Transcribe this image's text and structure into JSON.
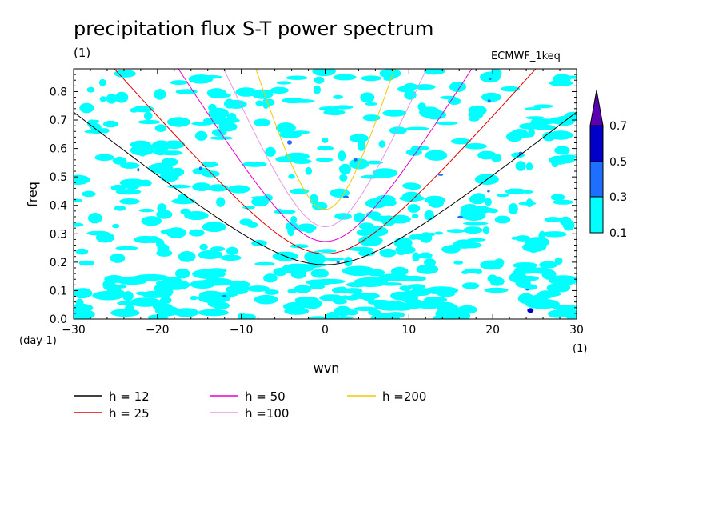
{
  "chart_data": {
    "type": "heatmap",
    "title": "precipitation flux S-T power spectrum",
    "subtitle": "(1)",
    "source_label": "ECMWF_1keq",
    "xlabel": "wvn",
    "ylabel": "freq",
    "x_unit_label": "(1)",
    "y_unit_label": "(day-1)",
    "xlim": [
      -30,
      30
    ],
    "ylim": [
      0,
      0.88
    ],
    "x_ticks": [
      -30,
      -20,
      -10,
      0,
      10,
      20,
      30
    ],
    "x_tick_labels": [
      "−30",
      "−20",
      "−10",
      "0",
      "10",
      "20",
      "30"
    ],
    "y_ticks": [
      0.0,
      0.1,
      0.2,
      0.3,
      0.4,
      0.5,
      0.6,
      0.7,
      0.8
    ],
    "y_tick_labels": [
      "0.0",
      "0.1",
      "0.2",
      "0.3",
      "0.4",
      "0.5",
      "0.6",
      "0.7",
      "0.8"
    ],
    "colorbar": {
      "levels": [
        "0.1",
        "0.3",
        "0.5",
        "0.7"
      ],
      "colors": [
        "#00ffff",
        "#1e6eff",
        "#0000c8",
        "#5a00b4"
      ]
    },
    "field_colors": [
      "#00ffff",
      "#1e6eff",
      "#0000c8"
    ],
    "dispersion_curves": [
      {
        "name": "h = 12",
        "h": 12,
        "color": "#000000"
      },
      {
        "name": "h = 25",
        "h": 25,
        "color": "#e00000"
      },
      {
        "name": "h = 50",
        "h": 50,
        "color": "#e600c8"
      },
      {
        "name": "h =100",
        "h": 100,
        "color": "#e696e6"
      },
      {
        "name": "h =200",
        "h": 200,
        "color": "#f0c800"
      }
    ],
    "legend_placement": "bottom"
  }
}
